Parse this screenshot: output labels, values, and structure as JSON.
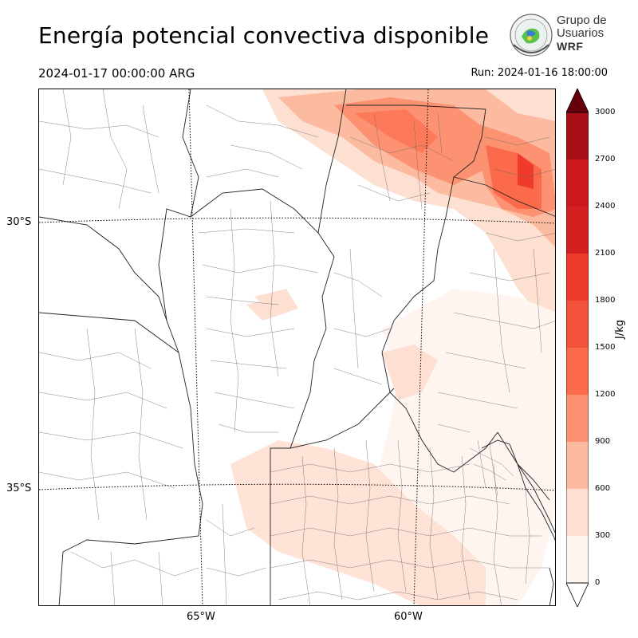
{
  "header": {
    "title": "Energía potencial convectiva disponible",
    "valid_time": "2024-01-17 00:00:00 ARG",
    "run_time": "Run: 2024-01-16 18:00:00"
  },
  "logo": {
    "line1": "Grupo de",
    "line2": "Usuarios",
    "line3": "WRF"
  },
  "map": {
    "lat_labels": [
      "30°S",
      "35°S"
    ],
    "lon_labels": [
      "65°W",
      "60°W"
    ]
  },
  "colorbar": {
    "unit": "J/kg",
    "ticks": [
      "3000",
      "2700",
      "2400",
      "2100",
      "1800",
      "1500",
      "1200",
      "900",
      "600",
      "300",
      "0"
    ],
    "colors": [
      "#fff5f0",
      "#fee0d2",
      "#fcbba1",
      "#fc9272",
      "#fb6a4a",
      "#f4513a",
      "#ef3b2c",
      "#d32020",
      "#cb181d",
      "#a50f15",
      "#67000d"
    ]
  }
}
